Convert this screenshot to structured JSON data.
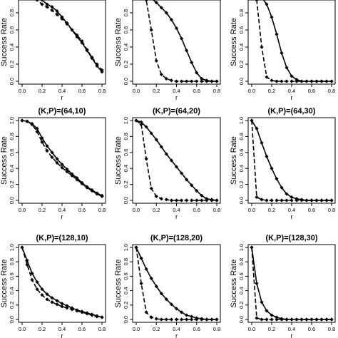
{
  "figure": {
    "ylabel": "Success Rate",
    "xlabel": "r"
  },
  "chart_data": [
    {
      "type": "line",
      "title": "",
      "xlabel": "r",
      "ylabel": "Success Rate",
      "xlim": [
        0,
        0.8
      ],
      "ylim": [
        0,
        1
      ],
      "xticks": [
        "0.0",
        "0.2",
        "0.4",
        "0.6",
        "0.8"
      ],
      "yticks": [
        "0.0",
        "0.2",
        "0.4",
        "0.6",
        "0.8",
        "1.0"
      ],
      "grid": false,
      "x": [
        0,
        0.05,
        0.1,
        0.15,
        0.2,
        0.25,
        0.3,
        0.35,
        0.4,
        0.45,
        0.5,
        0.55,
        0.6,
        0.65,
        0.7,
        0.75,
        0.8
      ],
      "series": [
        {
          "style": "solid",
          "values": [
            1.0,
            0.99,
            0.98,
            0.97,
            0.95,
            0.9,
            0.87,
            0.82,
            0.75,
            0.68,
            0.6,
            0.52,
            0.45,
            0.36,
            0.27,
            0.18,
            0.11
          ]
        },
        {
          "style": "dashed",
          "values": [
            1.0,
            0.99,
            0.97,
            0.95,
            0.9,
            0.87,
            0.83,
            0.78,
            0.73,
            0.67,
            0.6,
            0.54,
            0.47,
            0.37,
            0.28,
            0.2,
            0.13
          ]
        }
      ]
    },
    {
      "type": "line",
      "title": "",
      "xlabel": "r",
      "ylabel": "Success Rate",
      "xlim": [
        0,
        0.8
      ],
      "ylim": [
        0,
        1
      ],
      "xticks": [
        "0.0",
        "0.2",
        "0.4",
        "0.6",
        "0.8"
      ],
      "yticks": [
        "0.0",
        "0.2",
        "0.4",
        "0.6",
        "0.8",
        "1.0"
      ],
      "grid": false,
      "x": [
        0,
        0.05,
        0.1,
        0.15,
        0.2,
        0.25,
        0.3,
        0.35,
        0.4,
        0.45,
        0.5,
        0.55,
        0.6,
        0.65,
        0.7,
        0.75,
        0.8
      ],
      "series": [
        {
          "style": "solid",
          "values": [
            1.0,
            1.0,
            0.99,
            0.97,
            0.92,
            0.86,
            0.8,
            0.72,
            0.62,
            0.5,
            0.36,
            0.22,
            0.1,
            0.03,
            0.01,
            0.0,
            0.0
          ]
        },
        {
          "style": "dashed",
          "values": [
            1.0,
            1.0,
            0.95,
            0.6,
            0.24,
            0.08,
            0.03,
            0.01,
            0.0,
            0.0,
            0.0,
            0.0,
            0.0,
            0.0,
            0.0,
            0.0,
            0.0
          ]
        }
      ]
    },
    {
      "type": "line",
      "title": "",
      "xlabel": "r",
      "ylabel": "Success Rate",
      "xlim": [
        0,
        0.8
      ],
      "ylim": [
        0,
        1
      ],
      "xticks": [
        "0.0",
        "0.2",
        "0.4",
        "0.6",
        "0.8"
      ],
      "yticks": [
        "0.0",
        "0.2",
        "0.4",
        "0.6",
        "0.8",
        "1.0"
      ],
      "grid": false,
      "x": [
        0,
        0.05,
        0.1,
        0.15,
        0.2,
        0.25,
        0.3,
        0.35,
        0.4,
        0.45,
        0.5,
        0.55,
        0.6,
        0.65,
        0.7,
        0.75,
        0.8
      ],
      "series": [
        {
          "style": "solid",
          "values": [
            1.0,
            1.0,
            0.98,
            0.9,
            0.75,
            0.55,
            0.33,
            0.16,
            0.06,
            0.02,
            0.0,
            0.0,
            0.0,
            0.0,
            0.0,
            0.0,
            0.0
          ]
        },
        {
          "style": "dashed",
          "values": [
            1.0,
            0.95,
            0.4,
            0.05,
            0.01,
            0.0,
            0.0,
            0.0,
            0.0,
            0.0,
            0.0,
            0.0,
            0.0,
            0.0,
            0.0,
            0.0,
            0.0
          ]
        }
      ]
    },
    {
      "type": "line",
      "title": "(K,P)=(64,10)",
      "xlabel": "r",
      "ylabel": "Success Rate",
      "xlim": [
        0,
        0.8
      ],
      "ylim": [
        0,
        1
      ],
      "xticks": [
        "0.0",
        "0.2",
        "0.4",
        "0.6",
        "0.8"
      ],
      "yticks": [
        "0.0",
        "0.2",
        "0.4",
        "0.6",
        "0.8",
        "1.0"
      ],
      "grid": false,
      "x": [
        0,
        0.05,
        0.1,
        0.15,
        0.2,
        0.25,
        0.3,
        0.35,
        0.4,
        0.45,
        0.5,
        0.55,
        0.6,
        0.65,
        0.7,
        0.75,
        0.8
      ],
      "series": [
        {
          "style": "solid",
          "values": [
            1.0,
            0.99,
            0.96,
            0.9,
            0.78,
            0.68,
            0.6,
            0.52,
            0.45,
            0.39,
            0.33,
            0.28,
            0.22,
            0.17,
            0.13,
            0.09,
            0.06
          ]
        },
        {
          "style": "dashed",
          "values": [
            1.0,
            0.99,
            0.95,
            0.86,
            0.73,
            0.62,
            0.54,
            0.47,
            0.41,
            0.36,
            0.31,
            0.26,
            0.21,
            0.16,
            0.12,
            0.08,
            0.05
          ]
        }
      ]
    },
    {
      "type": "line",
      "title": "(K,P)=(64,20)",
      "xlabel": "r",
      "ylabel": "Success Rate",
      "xlim": [
        0,
        0.8
      ],
      "ylim": [
        0,
        1
      ],
      "xticks": [
        "0.0",
        "0.2",
        "0.4",
        "0.6",
        "0.8"
      ],
      "yticks": [
        "0.0",
        "0.2",
        "0.4",
        "0.6",
        "0.8",
        "1.0"
      ],
      "grid": false,
      "x": [
        0,
        0.05,
        0.1,
        0.15,
        0.2,
        0.25,
        0.3,
        0.35,
        0.4,
        0.45,
        0.5,
        0.55,
        0.6,
        0.65,
        0.7,
        0.75,
        0.8
      ],
      "series": [
        {
          "style": "solid",
          "values": [
            1.0,
            0.98,
            0.92,
            0.84,
            0.76,
            0.67,
            0.58,
            0.5,
            0.42,
            0.34,
            0.26,
            0.19,
            0.12,
            0.06,
            0.02,
            0.01,
            0.0
          ]
        },
        {
          "style": "dashed",
          "values": [
            1.0,
            0.95,
            0.52,
            0.15,
            0.05,
            0.02,
            0.01,
            0.0,
            0.0,
            0.0,
            0.0,
            0.0,
            0.0,
            0.0,
            0.0,
            0.0,
            0.0
          ]
        }
      ]
    },
    {
      "type": "line",
      "title": "(K,P)=(64,30)",
      "xlabel": "r",
      "ylabel": "Success Rate",
      "xlim": [
        0,
        0.8
      ],
      "ylim": [
        0,
        1
      ],
      "xticks": [
        "0.0",
        "0.2",
        "0.4",
        "0.6",
        "0.8"
      ],
      "yticks": [
        "0.0",
        "0.2",
        "0.4",
        "0.6",
        "0.8",
        "1.0"
      ],
      "grid": false,
      "x": [
        0,
        0.05,
        0.1,
        0.15,
        0.2,
        0.25,
        0.3,
        0.35,
        0.4,
        0.45,
        0.5,
        0.55,
        0.6,
        0.65,
        0.7,
        0.75,
        0.8
      ],
      "series": [
        {
          "style": "solid",
          "values": [
            1.0,
            0.9,
            0.72,
            0.55,
            0.4,
            0.27,
            0.16,
            0.08,
            0.04,
            0.02,
            0.01,
            0.0,
            0.0,
            0.0,
            0.0,
            0.0,
            0.0
          ]
        },
        {
          "style": "dashed",
          "values": [
            1.0,
            0.04,
            0.01,
            0.0,
            0.0,
            0.0,
            0.0,
            0.0,
            0.0,
            0.0,
            0.0,
            0.0,
            0.0,
            0.0,
            0.0,
            0.0,
            0.0
          ]
        }
      ]
    },
    {
      "type": "line",
      "title": "(K,P)=(128,10)",
      "xlabel": "r",
      "ylabel": "Success Rate",
      "xlim": [
        0,
        0.8
      ],
      "ylim": [
        0,
        1
      ],
      "xticks": [
        "0.0",
        "0.2",
        "0.4",
        "0.6",
        "0.8"
      ],
      "yticks": [
        "0.0",
        "0.2",
        "0.4",
        "0.6",
        "0.8",
        "1.0"
      ],
      "grid": false,
      "x": [
        0,
        0.05,
        0.1,
        0.15,
        0.2,
        0.25,
        0.3,
        0.35,
        0.4,
        0.45,
        0.5,
        0.55,
        0.6,
        0.65,
        0.7,
        0.75,
        0.8
      ],
      "series": [
        {
          "style": "solid",
          "values": [
            1.0,
            0.82,
            0.64,
            0.52,
            0.42,
            0.35,
            0.3,
            0.26,
            0.22,
            0.19,
            0.16,
            0.13,
            0.11,
            0.09,
            0.07,
            0.05,
            0.03
          ]
        },
        {
          "style": "dashed",
          "values": [
            1.0,
            0.76,
            0.55,
            0.42,
            0.34,
            0.28,
            0.24,
            0.21,
            0.18,
            0.16,
            0.14,
            0.12,
            0.1,
            0.08,
            0.06,
            0.04,
            0.03
          ]
        }
      ]
    },
    {
      "type": "line",
      "title": "(K,P)=(128,20)",
      "xlabel": "r",
      "ylabel": "Success Rate",
      "xlim": [
        0,
        0.8
      ],
      "ylim": [
        0,
        1
      ],
      "xticks": [
        "0.0",
        "0.2",
        "0.4",
        "0.6",
        "0.8"
      ],
      "yticks": [
        "0.0",
        "0.2",
        "0.4",
        "0.6",
        "0.8",
        "1.0"
      ],
      "grid": false,
      "x": [
        0,
        0.05,
        0.1,
        0.15,
        0.2,
        0.25,
        0.3,
        0.35,
        0.4,
        0.45,
        0.5,
        0.55,
        0.6,
        0.65,
        0.7,
        0.75,
        0.8
      ],
      "series": [
        {
          "style": "solid",
          "values": [
            1.0,
            0.85,
            0.7,
            0.57,
            0.46,
            0.36,
            0.28,
            0.21,
            0.15,
            0.1,
            0.06,
            0.04,
            0.02,
            0.01,
            0.0,
            0.0,
            0.0
          ]
        },
        {
          "style": "dashed",
          "values": [
            1.0,
            0.5,
            0.1,
            0.03,
            0.01,
            0.0,
            0.0,
            0.0,
            0.0,
            0.0,
            0.0,
            0.0,
            0.0,
            0.0,
            0.0,
            0.0,
            0.0
          ]
        }
      ]
    },
    {
      "type": "line",
      "title": "(K,P)=(128,30)",
      "xlabel": "r",
      "ylabel": "Success Rate",
      "xlim": [
        0,
        0.8
      ],
      "ylim": [
        0,
        1
      ],
      "xticks": [
        "0.0",
        "0.2",
        "0.4",
        "0.6",
        "0.8"
      ],
      "yticks": [
        "0.0",
        "0.2",
        "0.4",
        "0.6",
        "0.8",
        "1.0"
      ],
      "grid": false,
      "x": [
        0,
        0.05,
        0.1,
        0.15,
        0.2,
        0.25,
        0.3,
        0.35,
        0.4,
        0.45,
        0.5,
        0.55,
        0.6,
        0.65,
        0.7,
        0.75,
        0.8
      ],
      "series": [
        {
          "style": "solid",
          "values": [
            1.0,
            0.5,
            0.24,
            0.12,
            0.06,
            0.03,
            0.01,
            0.0,
            0.0,
            0.0,
            0.0,
            0.0,
            0.0,
            0.0,
            0.0,
            0.0,
            0.0
          ]
        },
        {
          "style": "dashed",
          "values": [
            1.0,
            0.02,
            0.0,
            0.0,
            0.0,
            0.0,
            0.0,
            0.0,
            0.0,
            0.0,
            0.0,
            0.0,
            0.0,
            0.0,
            0.0,
            0.0,
            0.0
          ]
        }
      ]
    }
  ]
}
